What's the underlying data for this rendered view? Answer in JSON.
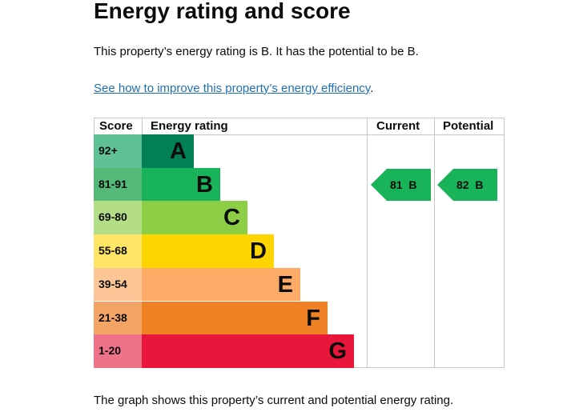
{
  "heading": "Energy rating and score",
  "summary": "This property’s energy rating is B. It has the potential to be B.",
  "improve_link": "See how to improve this property’s energy efficiency",
  "improve_link_suffix": ".",
  "graph_caption": "The graph shows this property’s current and potential energy rating.",
  "table": {
    "headers": {
      "score": "Score",
      "rating": "Energy rating",
      "current": "Current",
      "potential": "Potential"
    },
    "bands": [
      {
        "score": "92+",
        "letter": "A",
        "bar_color": "#008054",
        "score_color": "#61c196"
      },
      {
        "score": "81-91",
        "letter": "B",
        "bar_color": "#19b459",
        "score_color": "#55b97a"
      },
      {
        "score": "69-80",
        "letter": "C",
        "bar_color": "#8dce46",
        "score_color": "#b3dd86"
      },
      {
        "score": "55-68",
        "letter": "D",
        "bar_color": "#ffd500",
        "score_color": "#fee566"
      },
      {
        "score": "39-54",
        "letter": "E",
        "bar_color": "#fcaa65",
        "score_color": "#fcc596"
      },
      {
        "score": "21-38",
        "letter": "F",
        "bar_color": "#ef8023",
        "score_color": "#f4a466"
      },
      {
        "score": "1-20",
        "letter": "G",
        "bar_color": "#e9153b",
        "score_color": "#f07289"
      }
    ],
    "current": {
      "score": "81",
      "band": "B",
      "color": "#19b459"
    },
    "potential": {
      "score": "82",
      "band": "B",
      "color": "#19b459"
    }
  }
}
